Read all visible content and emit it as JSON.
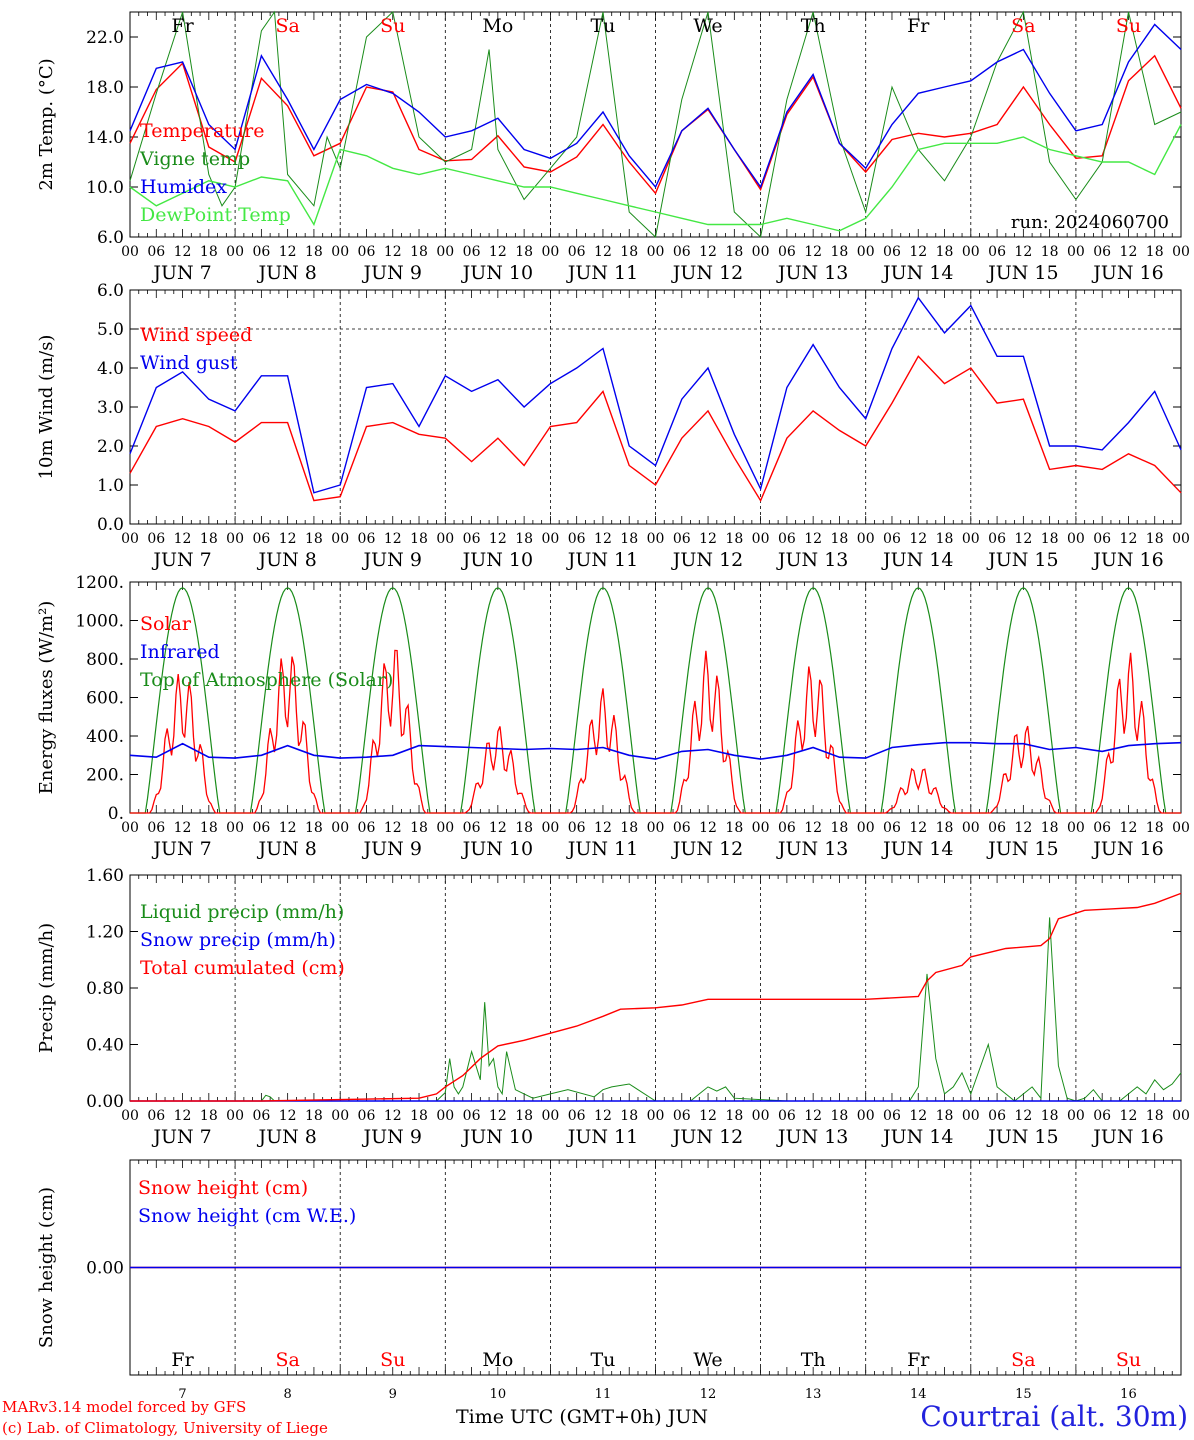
{
  "chart_data": [
    {
      "id": "temp",
      "type": "line",
      "ylabel": "2m Temp. (°C)",
      "ylim": [
        6,
        24
      ],
      "yticks": [
        "6.0",
        "10.0",
        "14.0",
        "18.0",
        "22.0"
      ],
      "annotation": "run: 2024060700",
      "series": [
        {
          "name": "Temperature",
          "color": "#ff0000",
          "x": [
            0,
            6,
            12,
            18,
            24,
            30,
            36,
            42,
            48,
            54,
            60,
            66,
            72,
            78,
            84,
            90,
            96,
            102,
            108,
            114,
            120,
            126,
            132,
            138,
            144,
            150,
            156,
            162,
            168,
            174,
            180,
            186,
            192,
            198,
            204,
            210,
            216,
            222,
            228,
            234,
            240
          ],
          "y": [
            13.5,
            17.8,
            19.9,
            13.2,
            12.0,
            18.7,
            16.5,
            12.5,
            13.5,
            18.0,
            17.6,
            13.0,
            12.1,
            12.2,
            14.1,
            11.6,
            11.2,
            12.4,
            15.0,
            12.0,
            9.5,
            14.5,
            16.2,
            13.0,
            9.8,
            15.8,
            18.8,
            13.5,
            11.2,
            13.8,
            14.3,
            14.0,
            14.3,
            15.0,
            18.0,
            15.0,
            12.3,
            12.5,
            18.5,
            20.5,
            16.3
          ]
        },
        {
          "name": "Vigne temp",
          "color": "#1a8c1a",
          "x": [
            0,
            6,
            12,
            18,
            21,
            24,
            30,
            33,
            36,
            42,
            45,
            48,
            54,
            60,
            66,
            72,
            78,
            82,
            84,
            90,
            96,
            102,
            108,
            114,
            120,
            126,
            132,
            138,
            144,
            150,
            156,
            162,
            168,
            174,
            180,
            186,
            192,
            198,
            204,
            210,
            216,
            222,
            228,
            234,
            240
          ],
          "y": [
            10.5,
            17.5,
            24.0,
            11.0,
            8.5,
            10.0,
            22.5,
            24.0,
            11.0,
            8.5,
            14.0,
            11.5,
            22.0,
            24.0,
            14.0,
            12.0,
            13.0,
            21.0,
            13.0,
            9.0,
            11.5,
            14.0,
            24.0,
            8.0,
            6.0,
            17.0,
            24.0,
            8.0,
            6.0,
            17.0,
            24.0,
            14.0,
            8.0,
            18.0,
            13.0,
            10.5,
            14.0,
            20.0,
            24.0,
            12.0,
            9.0,
            12.0,
            24.0,
            15.0,
            16.0
          ]
        },
        {
          "name": "Humidex",
          "color": "#0000ee",
          "x": [
            0,
            6,
            12,
            18,
            24,
            30,
            36,
            42,
            48,
            54,
            60,
            66,
            72,
            78,
            84,
            90,
            96,
            102,
            108,
            114,
            120,
            126,
            132,
            138,
            144,
            150,
            156,
            162,
            168,
            174,
            180,
            186,
            192,
            198,
            204,
            210,
            216,
            222,
            228,
            234,
            240
          ],
          "y": [
            14.5,
            19.5,
            20.0,
            15.0,
            13.0,
            20.5,
            17.0,
            13.0,
            17.0,
            18.2,
            17.5,
            16.0,
            14.0,
            14.5,
            15.5,
            13.0,
            12.3,
            13.5,
            16.0,
            12.5,
            10.0,
            14.5,
            16.3,
            13.0,
            10.0,
            16.0,
            19.0,
            13.5,
            11.5,
            15.0,
            17.5,
            18.0,
            18.5,
            20.0,
            21.0,
            17.5,
            14.5,
            15.0,
            20.0,
            23.0,
            21.0
          ]
        },
        {
          "name": "DewPoint Temp",
          "color": "#44e844",
          "x": [
            0,
            6,
            12,
            18,
            24,
            30,
            36,
            42,
            48,
            54,
            60,
            66,
            72,
            78,
            84,
            90,
            96,
            102,
            108,
            114,
            120,
            126,
            132,
            138,
            144,
            150,
            156,
            162,
            168,
            174,
            180,
            186,
            192,
            198,
            204,
            210,
            216,
            222,
            228,
            234,
            240
          ],
          "y": [
            10.0,
            8.5,
            9.5,
            10.5,
            10.0,
            10.8,
            10.5,
            7.0,
            13.0,
            12.5,
            11.5,
            11.0,
            11.5,
            11.0,
            10.5,
            10.0,
            10.0,
            9.5,
            9.0,
            8.5,
            8.0,
            7.5,
            7.0,
            7.0,
            7.0,
            7.5,
            7.0,
            6.5,
            7.5,
            10.0,
            13.0,
            13.5,
            13.5,
            13.5,
            14.0,
            13.0,
            12.5,
            12.0,
            12.0,
            11.0,
            15.0
          ]
        }
      ]
    },
    {
      "id": "wind",
      "type": "line",
      "ylabel": "10m Wind (m/s)",
      "ylim": [
        0,
        6
      ],
      "yticks": [
        "0.0",
        "1.0",
        "2.0",
        "3.0",
        "4.0",
        "5.0",
        "6.0"
      ],
      "dashed_level": 5,
      "series": [
        {
          "name": "Wind speed",
          "color": "#ff0000",
          "x": [
            0,
            6,
            12,
            18,
            24,
            30,
            36,
            42,
            48,
            54,
            60,
            66,
            72,
            78,
            84,
            90,
            96,
            102,
            108,
            114,
            120,
            126,
            132,
            138,
            144,
            150,
            156,
            162,
            168,
            174,
            180,
            186,
            192,
            198,
            204,
            210,
            216,
            222,
            228,
            234,
            240
          ],
          "y": [
            1.3,
            2.5,
            2.7,
            2.5,
            2.1,
            2.6,
            2.6,
            0.6,
            0.7,
            2.5,
            2.6,
            2.3,
            2.2,
            1.6,
            2.2,
            1.5,
            2.5,
            2.6,
            3.4,
            1.5,
            1.0,
            2.2,
            2.9,
            1.7,
            0.6,
            2.2,
            2.9,
            2.4,
            2.0,
            3.1,
            4.3,
            3.6,
            4.0,
            3.1,
            3.2,
            1.4,
            1.5,
            1.4,
            1.8,
            1.5,
            0.8
          ]
        },
        {
          "name": "Wind gust",
          "color": "#0000ee",
          "x": [
            0,
            6,
            12,
            18,
            24,
            30,
            36,
            42,
            48,
            54,
            60,
            66,
            72,
            78,
            84,
            90,
            96,
            102,
            108,
            114,
            120,
            126,
            132,
            138,
            144,
            150,
            156,
            162,
            168,
            174,
            180,
            186,
            192,
            198,
            204,
            210,
            216,
            222,
            228,
            234,
            240
          ],
          "y": [
            1.8,
            3.5,
            3.9,
            3.2,
            2.9,
            3.8,
            3.8,
            0.8,
            1.0,
            3.5,
            3.6,
            2.5,
            3.8,
            3.4,
            3.7,
            3.0,
            3.6,
            4.0,
            4.5,
            2.0,
            1.5,
            3.2,
            4.0,
            2.3,
            0.9,
            3.5,
            4.6,
            3.5,
            2.7,
            4.5,
            5.8,
            4.9,
            5.6,
            4.3,
            4.3,
            2.0,
            2.0,
            1.9,
            2.6,
            3.4,
            1.9
          ]
        }
      ]
    },
    {
      "id": "energy",
      "type": "line",
      "ylabel": "Energy fluxes (W/m²)",
      "ylim": [
        0,
        1200
      ],
      "yticks": [
        "0.",
        "200.",
        "400.",
        "600.",
        "800.",
        "1000.",
        "1200."
      ],
      "daily_peak_solar": [
        750,
        870,
        900,
        460,
        650,
        850,
        790,
        250,
        470,
        840
      ],
      "toa_peak": 1170,
      "series": [
        {
          "name": "Solar",
          "color": "#ff0000"
        },
        {
          "name": "Infrared",
          "color": "#0000ee",
          "x": [
            0,
            6,
            12,
            18,
            24,
            30,
            36,
            42,
            48,
            54,
            60,
            66,
            72,
            78,
            84,
            90,
            96,
            102,
            108,
            114,
            120,
            126,
            132,
            138,
            144,
            150,
            156,
            162,
            168,
            174,
            180,
            186,
            192,
            198,
            204,
            210,
            216,
            222,
            228,
            234,
            240
          ],
          "y": [
            300,
            290,
            360,
            290,
            285,
            300,
            350,
            300,
            285,
            290,
            300,
            350,
            345,
            340,
            335,
            330,
            335,
            330,
            340,
            300,
            280,
            320,
            330,
            300,
            280,
            300,
            340,
            290,
            285,
            340,
            355,
            365,
            365,
            360,
            360,
            330,
            340,
            320,
            350,
            360,
            365
          ]
        },
        {
          "name": "Top of Atmosphere (Solar)",
          "color": "#1a8c1a"
        }
      ]
    },
    {
      "id": "precip",
      "type": "line",
      "ylabel": "Precip (mm/h)",
      "ylim": [
        0,
        1.6
      ],
      "yticks": [
        "0.00",
        "0.40",
        "0.80",
        "1.20",
        "1.60"
      ],
      "series": [
        {
          "name": "Liquid precip (mm/h)",
          "color": "#1a8c1a",
          "x": [
            0,
            30,
            31,
            32,
            33,
            70,
            72,
            73,
            74,
            75,
            76,
            78,
            80,
            81,
            82,
            83,
            84,
            85,
            86,
            88,
            90,
            92,
            96,
            100,
            106,
            108,
            110,
            114,
            120,
            128,
            130,
            132,
            134,
            136,
            138,
            150,
            168,
            178,
            180,
            182,
            184,
            186,
            188,
            190,
            192,
            196,
            198,
            200,
            202,
            204,
            206,
            208,
            210,
            212,
            214,
            216,
            218,
            220,
            222,
            226,
            228,
            230,
            232,
            234,
            236,
            238,
            240
          ],
          "y": [
            0,
            0,
            0.04,
            0.03,
            0,
            0,
            0.06,
            0.3,
            0.1,
            0.05,
            0.1,
            0.35,
            0.15,
            0.7,
            0.25,
            0.3,
            0.1,
            0.05,
            0.35,
            0.08,
            0.05,
            0.02,
            0.05,
            0.08,
            0.03,
            0.08,
            0.1,
            0.12,
            0.0,
            0.0,
            0.05,
            0.1,
            0.07,
            0.1,
            0.02,
            0.0,
            0.0,
            0.0,
            0.1,
            0.9,
            0.3,
            0.05,
            0.1,
            0.2,
            0.05,
            0.4,
            0.1,
            0.05,
            0.0,
            0.05,
            0.1,
            0.02,
            1.3,
            0.25,
            0.02,
            0.0,
            0.02,
            0.08,
            0.0,
            0.0,
            0.05,
            0.1,
            0.05,
            0.15,
            0.08,
            0.12,
            0.2
          ]
        },
        {
          "name": "Snow precip (mm/h)",
          "color": "#0000ee",
          "x": [
            0,
            240
          ],
          "y": [
            0,
            0
          ]
        },
        {
          "name": "Total cumulated (cm)",
          "color": "#ff0000",
          "x": [
            0,
            30,
            66,
            70,
            72,
            76,
            80,
            84,
            90,
            96,
            102,
            108,
            112,
            120,
            126,
            132,
            140,
            150,
            160,
            168,
            180,
            182,
            184,
            190,
            192,
            200,
            208,
            210,
            212,
            218,
            224,
            230,
            234,
            240
          ],
          "y": [
            0,
            0,
            0.02,
            0.05,
            0.1,
            0.18,
            0.3,
            0.39,
            0.43,
            0.48,
            0.53,
            0.6,
            0.65,
            0.66,
            0.68,
            0.72,
            0.72,
            0.72,
            0.72,
            0.72,
            0.74,
            0.85,
            0.91,
            0.96,
            1.02,
            1.08,
            1.1,
            1.15,
            1.29,
            1.35,
            1.36,
            1.37,
            1.4,
            1.47
          ]
        }
      ]
    },
    {
      "id": "snow",
      "type": "line",
      "ylabel": "Snow height (cm)",
      "ylim": [
        -1,
        1
      ],
      "yticks": [
        "0.00"
      ],
      "series": [
        {
          "name": "Snow height (cm)",
          "color": "#ff0000",
          "x": [
            0,
            240
          ],
          "y": [
            0,
            0
          ]
        },
        {
          "name": "Snow height (cm W.E.)",
          "color": "#0000ee",
          "x": [
            0,
            240
          ],
          "y": [
            0,
            0
          ]
        }
      ]
    }
  ],
  "time_axis": {
    "hour_labels": [
      "00",
      "06",
      "12",
      "18"
    ],
    "final_hour_label": "00",
    "date_labels": [
      "JUN  7",
      "JUN  8",
      "JUN  9",
      "JUN 10",
      "JUN 11",
      "JUN 12",
      "JUN 13",
      "JUN 14",
      "JUN 15",
      "JUN 16"
    ],
    "weekdays": [
      "Fr",
      "Sa",
      "Su",
      "Mo",
      "Tu",
      "We",
      "Th",
      "Fr",
      "Sa",
      "Su"
    ],
    "weekday_colors": [
      "#000000",
      "#ff0000",
      "#ff0000",
      "#000000",
      "#000000",
      "#000000",
      "#000000",
      "#000000",
      "#ff0000",
      "#ff0000"
    ],
    "day_numbers": [
      "7",
      "8",
      "9",
      "10",
      "11",
      "12",
      "13",
      "14",
      "15",
      "16"
    ]
  },
  "footer": {
    "model_line": "MARv3.14 model forced by GFS",
    "credit_line": "(c) Lab. of Climatology, University of Liege",
    "xlabel": "Time UTC (GMT+0h) JUN",
    "station": "Courtrai (alt. 30m)"
  }
}
